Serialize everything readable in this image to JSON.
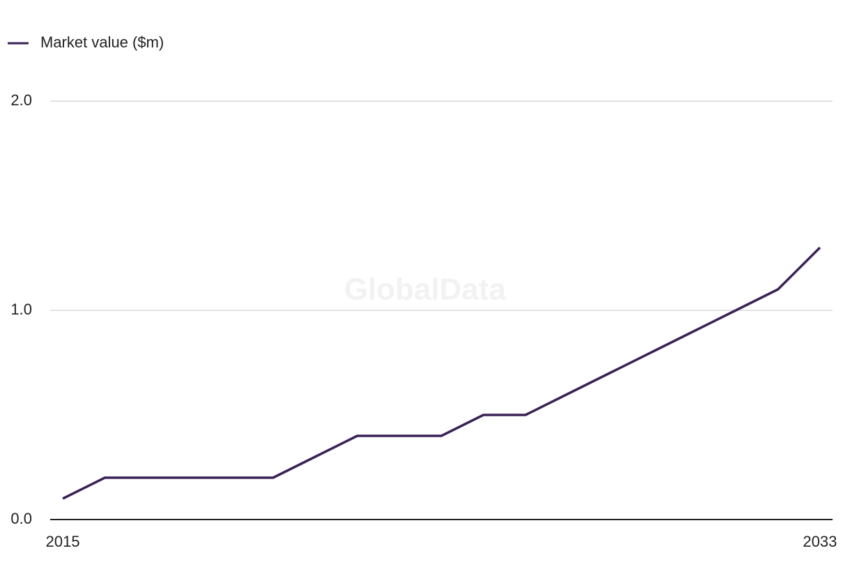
{
  "chart_data": {
    "type": "line",
    "watermark": "GlobalData",
    "x": [
      2015,
      2016,
      2017,
      2018,
      2019,
      2020,
      2021,
      2022,
      2023,
      2024,
      2025,
      2026,
      2027,
      2028,
      2029,
      2030,
      2031,
      2032,
      2033
    ],
    "series": [
      {
        "name": "Market value ($m)",
        "color": "#3a2256",
        "values": [
          0.1,
          0.2,
          0.2,
          0.2,
          0.2,
          0.2,
          0.3,
          0.4,
          0.4,
          0.4,
          0.5,
          0.5,
          0.6,
          0.7,
          0.8,
          0.9,
          1.0,
          1.1,
          1.3
        ]
      }
    ],
    "xlim": [
      2014.7,
      2033.3
    ],
    "xticks": [
      2015,
      2033
    ],
    "ylim": [
      0,
      2
    ],
    "yticks": [
      {
        "value": 0,
        "label": "0.0"
      },
      {
        "value": 1,
        "label": "1.0"
      },
      {
        "value": 2,
        "label": "2.0"
      }
    ],
    "grid": true,
    "legend": "top-left"
  }
}
